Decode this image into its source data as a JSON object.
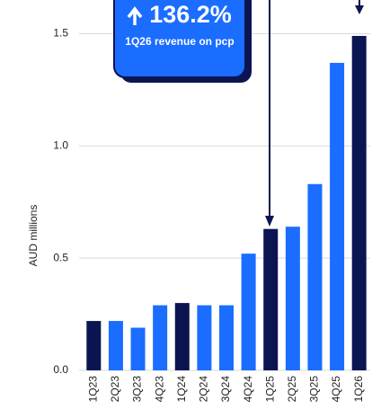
{
  "chart_data": {
    "type": "bar",
    "y_label": "AUD millions",
    "categories": [
      "1Q23",
      "2Q23",
      "3Q23",
      "4Q23",
      "1Q24",
      "2Q24",
      "3Q24",
      "4Q24",
      "1Q25",
      "2Q25",
      "3Q25",
      "4Q25",
      "1Q26"
    ],
    "values": [
      0.22,
      0.22,
      0.19,
      0.29,
      0.3,
      0.29,
      0.29,
      0.52,
      0.63,
      0.64,
      0.83,
      1.37,
      1.49
    ],
    "colors": [
      "#0b1551",
      "#1a6dff",
      "#1a6dff",
      "#1a6dff",
      "#0b1551",
      "#1a6dff",
      "#1a6dff",
      "#1a6dff",
      "#0b1551",
      "#1a6dff",
      "#1a6dff",
      "#1a6dff",
      "#0b1551"
    ],
    "ylim": [
      0,
      1.65
    ],
    "yticks": [
      {
        "value": 0,
        "label": "0.0"
      },
      0.5,
      {
        "value": 1,
        "label": "1.0"
      },
      1.5
    ],
    "grid": true,
    "annotation": {
      "headline": "136.2%",
      "text": "1Q26 revenue on pcp"
    }
  }
}
